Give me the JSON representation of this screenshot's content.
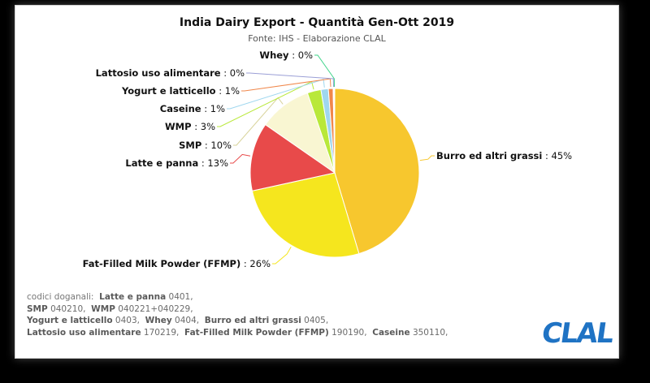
{
  "chart_data": {
    "type": "pie",
    "title": "India Dairy Export - Quantità Gen-Ott 2019",
    "subtitle": "Fonte: IHS - Elaborazione CLAL",
    "slices": [
      {
        "name": "Burro ed altri grassi",
        "label": "45%",
        "value": 45.0,
        "color": "#f7c72e",
        "label_side": "right"
      },
      {
        "name": "Fat-Filled Milk Powder (FFMP)",
        "label": "26%",
        "value": 26.0,
        "color": "#f5e61e",
        "label_side": "left"
      },
      {
        "name": "Latte e panna",
        "label": "13%",
        "value": 13.0,
        "color": "#e84a4a",
        "label_side": "left"
      },
      {
        "name": "SMP",
        "label": "10%",
        "value": 10.0,
        "color": "#f9f6d2",
        "label_side": "left"
      },
      {
        "name": "WMP",
        "label": "3%",
        "value": 2.6,
        "color": "#b9e83a",
        "label_side": "left"
      },
      {
        "name": "Caseine",
        "label": "1%",
        "value": 1.4,
        "color": "#9fd7ef",
        "label_side": "left"
      },
      {
        "name": "Yogurt e latticello",
        "label": "1%",
        "value": 0.9,
        "color": "#f0874b",
        "label_side": "left"
      },
      {
        "name": "Lattosio uso alimentare",
        "label": "0%",
        "value": 0.15,
        "color": "#9b9fd6",
        "label_side": "left"
      },
      {
        "name": "Whey",
        "label": "0%",
        "value": 0.15,
        "color": "#3fd48a",
        "label_side": "left"
      }
    ]
  },
  "codes": {
    "prefix": "codici doganali:",
    "lines": [
      [
        {
          "k": "Latte e panna",
          "v": "0401,"
        }
      ],
      [
        {
          "k": "SMP",
          "v": "040210,"
        },
        {
          "k": "WMP",
          "v": "040221+040229,"
        }
      ],
      [
        {
          "k": "Yogurt e latticello",
          "v": "0403,"
        },
        {
          "k": "Whey",
          "v": "0404,"
        },
        {
          "k": "Burro ed altri grassi",
          "v": "0405,"
        }
      ],
      [
        {
          "k": "Lattosio uso alimentare",
          "v": "170219,"
        },
        {
          "k": "Fat-Filled Milk Powder (FFMP)",
          "v": "190190,"
        },
        {
          "k": "Caseine",
          "v": "350110,"
        }
      ]
    ]
  },
  "logo": {
    "text": "CLAL",
    "color": "#1f73c4"
  }
}
